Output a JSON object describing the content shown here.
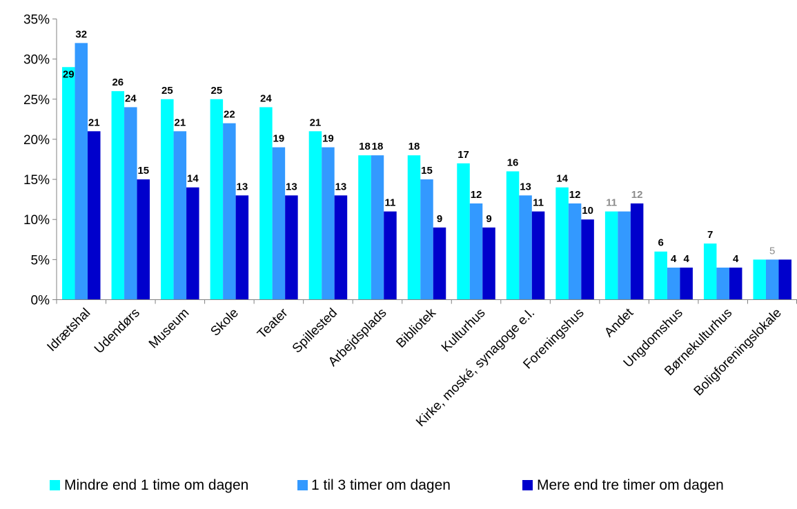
{
  "chart_data": {
    "type": "bar",
    "ylim": [
      0,
      35
    ],
    "yticks": [
      0,
      5,
      10,
      15,
      20,
      25,
      30,
      35
    ],
    "ytick_labels": [
      "0%",
      "5%",
      "10%",
      "15%",
      "20%",
      "25%",
      "30%",
      "35%"
    ],
    "grid": false,
    "legend_position": "bottom",
    "categories": [
      "Idrætshal",
      "Udendørs",
      "Museum",
      "Skole",
      "Teater",
      "Spillested",
      "Arbejdsplads",
      "Bibliotek",
      "Kulturhus",
      "Kirke, moské, synagoge e.l.",
      "Foreningshus",
      "Andet",
      "Ungdomshus",
      "Børnekulturhus",
      "Boligforeningslokale"
    ],
    "series": [
      {
        "name": "Mindre end 1 time om dagen",
        "color": "#00ffff",
        "values": [
          29,
          26,
          25,
          25,
          24,
          21,
          18,
          18,
          17,
          16,
          14,
          11,
          6,
          7,
          5
        ]
      },
      {
        "name": "1 til 3 timer om dagen",
        "color": "#3399ff",
        "values": [
          32,
          24,
          21,
          22,
          19,
          19,
          18,
          15,
          12,
          13,
          12,
          11,
          4,
          4,
          5
        ]
      },
      {
        "name": "Mere end tre timer om dagen",
        "color": "#0000cc",
        "values": [
          21,
          15,
          14,
          13,
          13,
          13,
          11,
          9,
          9,
          11,
          10,
          12,
          4,
          4,
          5
        ]
      }
    ],
    "data_labels": [
      [
        "29",
        "26",
        "25",
        "25",
        "24",
        "21",
        "18",
        "18",
        "17",
        "16",
        "14",
        "11",
        "6",
        "7",
        ""
      ],
      [
        "32",
        "24",
        "21",
        "22",
        "19",
        "19",
        "18",
        "15",
        "12",
        "13",
        "12",
        "",
        "4",
        "",
        "5"
      ],
      [
        "21",
        "15",
        "14",
        "13",
        "13",
        "13",
        "11",
        "9",
        "9",
        "11",
        "10",
        "12",
        "4",
        "4",
        ""
      ]
    ],
    "muted_labels": [
      "11",
      "12",
      "5"
    ]
  }
}
